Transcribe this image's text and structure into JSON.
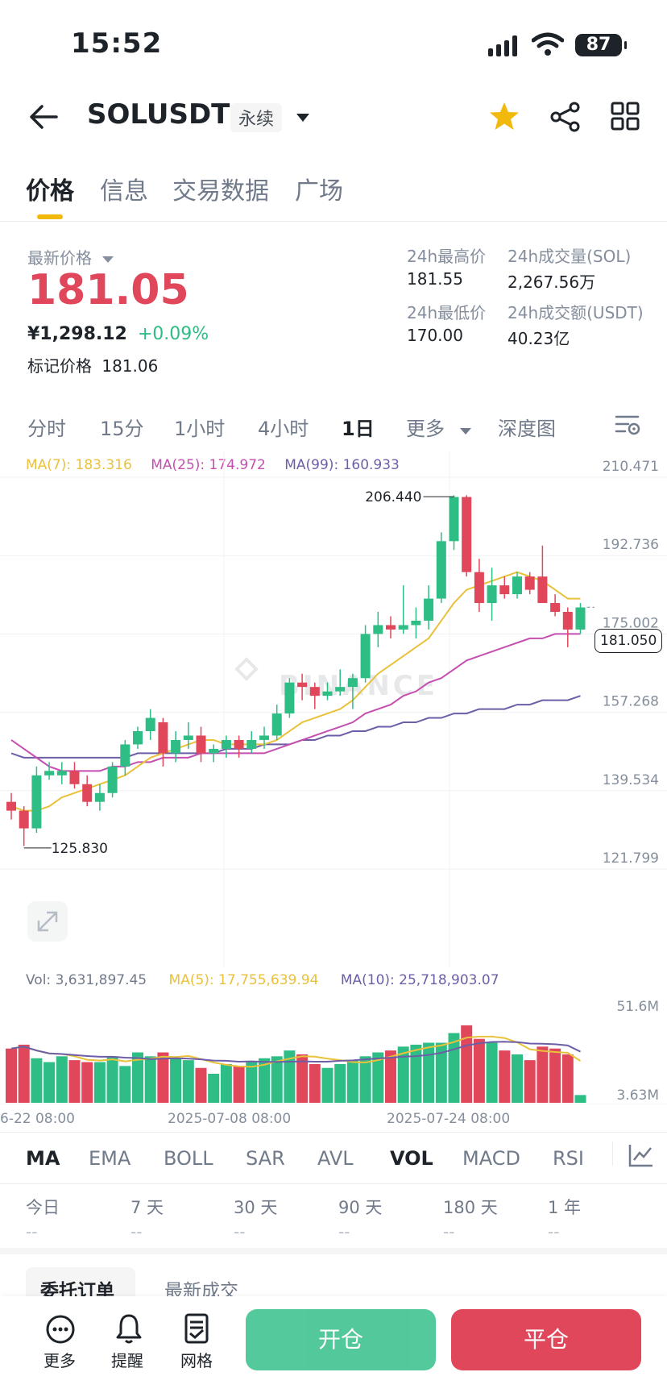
{
  "status": {
    "time": "15:52",
    "battery": "87"
  },
  "header": {
    "title": "SOLUSDT",
    "tag": "永续"
  },
  "tabs": [
    "价格",
    "信息",
    "交易数据",
    "广场"
  ],
  "price": {
    "label": "最新价格",
    "value": "181.05",
    "cny": "¥1,298.12",
    "change": "+0.09%",
    "mark_label": "标记价格",
    "mark_value": "181.06"
  },
  "stats": {
    "high_label": "24h最高价",
    "high": "181.55",
    "low_label": "24h最低价",
    "low": "170.00",
    "vol_label": "24h成交量(SOL)",
    "vol": "2,267.56万",
    "amt_label": "24h成交额(USDT)",
    "amt": "40.23亿"
  },
  "timeframes": [
    "分时",
    "15分",
    "1小时",
    "4小时",
    "1日",
    "更多",
    "深度图"
  ],
  "active_timeframe": "1日",
  "chart_data": {
    "type": "candlestick",
    "ma_labels": {
      "ma7": "MA(7): 183.316",
      "ma25": "MA(25): 174.972",
      "ma99": "MA(99): 160.933"
    },
    "y_ticks": [
      "210.471",
      "192.736",
      "175.002",
      "157.268",
      "139.534",
      "121.799"
    ],
    "y_range": [
      121.799,
      210.471
    ],
    "high_marker": "206.440",
    "low_marker": "125.830",
    "current_price": "181.050",
    "candles": [
      [
        137,
        139,
        133,
        135
      ],
      [
        135,
        136,
        127,
        131
      ],
      [
        131,
        145,
        130,
        143
      ],
      [
        143,
        146,
        142,
        144
      ],
      [
        143,
        146,
        141,
        144
      ],
      [
        144,
        146,
        140,
        141
      ],
      [
        141,
        143,
        136,
        137
      ],
      [
        137,
        141,
        135,
        139
      ],
      [
        139,
        146,
        138,
        145
      ],
      [
        145,
        151,
        143,
        150
      ],
      [
        150,
        154,
        149,
        153
      ],
      [
        153,
        158,
        151,
        156
      ],
      [
        155,
        156,
        145,
        148
      ],
      [
        148,
        153,
        146,
        151
      ],
      [
        151,
        155,
        149,
        152
      ],
      [
        152,
        154,
        146,
        148
      ],
      [
        148,
        150,
        146,
        149
      ],
      [
        149,
        152,
        147,
        151
      ],
      [
        151,
        152,
        147,
        149
      ],
      [
        149,
        153,
        148,
        151
      ],
      [
        151,
        154,
        149,
        152
      ],
      [
        152,
        159,
        151,
        157
      ],
      [
        157,
        165,
        156,
        164
      ],
      [
        164,
        166,
        160,
        163
      ],
      [
        163,
        164,
        158,
        161
      ],
      [
        161,
        164,
        160,
        162
      ],
      [
        162,
        167,
        161,
        163
      ],
      [
        163,
        166,
        158,
        165
      ],
      [
        165,
        177,
        164,
        175
      ],
      [
        175,
        180,
        172,
        177
      ],
      [
        177,
        179,
        174,
        176
      ],
      [
        176,
        186,
        175,
        177
      ],
      [
        177,
        181,
        174,
        178
      ],
      [
        178,
        186,
        176,
        183
      ],
      [
        183,
        198,
        182,
        196
      ],
      [
        196,
        206.4,
        194,
        206
      ],
      [
        206,
        206.4,
        188,
        189
      ],
      [
        189,
        192,
        180,
        182
      ],
      [
        182,
        190,
        178,
        186
      ],
      [
        186,
        188,
        183,
        184
      ],
      [
        184,
        189,
        183,
        188
      ],
      [
        188,
        189,
        184,
        185
      ],
      [
        188,
        195,
        182,
        182
      ],
      [
        182,
        184,
        179,
        180
      ],
      [
        180,
        181,
        172,
        176
      ],
      [
        176,
        182,
        175,
        181
      ]
    ],
    "ma7": [
      136,
      135,
      135,
      136,
      138,
      139,
      140,
      141,
      142,
      143,
      145,
      147,
      148,
      149,
      150,
      151,
      151,
      150,
      150,
      150,
      150,
      151,
      153,
      155,
      156,
      157,
      158,
      160,
      163,
      166,
      168,
      170,
      172,
      174,
      178,
      182,
      185,
      186,
      187,
      188,
      189,
      188,
      187,
      185,
      183,
      183
    ],
    "ma25": [
      151,
      149,
      147,
      145,
      144,
      144,
      144,
      144,
      145,
      145,
      146,
      146,
      147,
      147,
      147,
      148,
      148,
      148,
      148,
      148,
      148,
      149,
      150,
      151,
      152,
      153,
      154,
      155,
      157,
      158,
      159,
      161,
      162,
      164,
      165,
      167,
      169,
      170,
      171,
      172,
      173,
      174,
      174,
      175,
      175,
      175
    ],
    "ma99": [
      148,
      147,
      147,
      147,
      147,
      147,
      147,
      147,
      147,
      147,
      148,
      148,
      148,
      148,
      148,
      148,
      148,
      149,
      149,
      149,
      150,
      150,
      150,
      151,
      151,
      152,
      152,
      153,
      153,
      154,
      154,
      155,
      155,
      156,
      156,
      157,
      157,
      158,
      158,
      158,
      159,
      159,
      160,
      160,
      160,
      161
    ],
    "vol_labels": {
      "vol": "Vol: 3,631,897.45",
      "ma5": "MA(5): 17,755,639.94",
      "ma10": "MA(10): 25,718,903.07"
    },
    "vol_ticks": [
      "51.6M",
      "3.63M"
    ],
    "vol_range": [
      3.63,
      51.6
    ],
    "volumes": [
      28,
      30,
      23,
      21,
      24,
      22,
      21,
      21,
      24,
      19,
      26,
      24,
      26,
      23,
      22,
      18,
      15,
      20,
      19,
      21,
      23,
      24,
      27,
      25,
      20,
      18,
      20,
      22,
      24,
      26,
      27,
      29,
      30,
      31,
      31,
      36,
      40,
      33,
      31,
      27,
      25,
      22,
      29,
      28,
      25,
      4
    ],
    "x_labels": [
      "6-22 08:00",
      "2025-07-08 08:00",
      "2025-07-24 08:00"
    ],
    "colors": {
      "up": "#2ebd85",
      "down": "#e0475a",
      "ma7": "#e9c13a",
      "ma25": "#c54fb0",
      "ma99": "#6e5ea8"
    }
  },
  "watermark": "BINANCE",
  "indicators": [
    "MA",
    "EMA",
    "BOLL",
    "SAR",
    "AVL",
    "VOL",
    "MACD",
    "RSI"
  ],
  "periods": [
    {
      "label": "今日",
      "value": "--"
    },
    {
      "label": "7 天",
      "value": "--"
    },
    {
      "label": "30 天",
      "value": "--"
    },
    {
      "label": "90 天",
      "value": "--"
    },
    {
      "label": "180 天",
      "value": "--"
    },
    {
      "label": "1 年",
      "value": "--"
    }
  ],
  "order_tabs": [
    "委托订单",
    "最新成交"
  ],
  "bottom": {
    "more": "更多",
    "alert": "提醒",
    "grid": "网格",
    "open": "开仓",
    "close": "平仓"
  }
}
